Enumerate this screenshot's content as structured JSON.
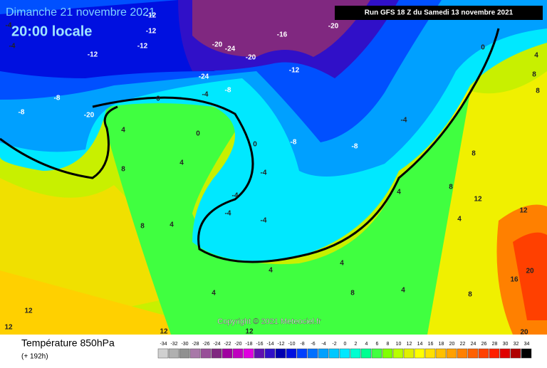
{
  "header": {
    "date": "Dimanche 21 novembre 2021",
    "time": "20:00 locale",
    "run": "Run GFS 18 Z du Samedi 13 novembre 2021"
  },
  "map": {
    "copyright": "Copyright © 2021 Meteociel.fr",
    "labels": [
      "-12",
      "-12",
      "-12",
      "-12",
      "-8",
      "-8",
      "-20",
      "-16",
      "-20",
      "-24",
      "-20",
      "-20",
      "-24",
      "-12",
      "-8",
      "-4",
      "0",
      "0",
      "4",
      "4",
      "8",
      "0",
      "-8",
      "-8",
      "-4",
      "0",
      "-4",
      "-4",
      "-4",
      "-4",
      "4",
      "8",
      "8",
      "12",
      "12",
      "4",
      "8",
      "4",
      "4",
      "4",
      "4",
      "8",
      "8",
      "12",
      "12",
      "12",
      "12",
      "16",
      "20",
      "20",
      "4",
      "8",
      "8",
      "-4",
      "-4",
      "4"
    ]
  },
  "legend": {
    "title": "Température 850hPa",
    "subtitle": "(+ 192h)",
    "values": [
      -34,
      -32,
      -30,
      -28,
      -26,
      -24,
      -22,
      -20,
      -18,
      -16,
      -14,
      -12,
      -10,
      -8,
      -6,
      -4,
      -2,
      0,
      2,
      4,
      6,
      8,
      10,
      12,
      14,
      16,
      18,
      20,
      22,
      24,
      26,
      28,
      30,
      32,
      34
    ],
    "colors": [
      "#d0d0d0",
      "#b0b0b0",
      "#909090",
      "#a878a8",
      "#985098",
      "#802880",
      "#a000a0",
      "#c000c0",
      "#e000e0",
      "#6010b0",
      "#3010c8",
      "#0000b0",
      "#0010e0",
      "#0040ff",
      "#0070ff",
      "#00a0ff",
      "#00c8ff",
      "#00e8ff",
      "#00ffd0",
      "#00ff90",
      "#40ff40",
      "#80ff00",
      "#b8ff00",
      "#e0f000",
      "#ffff00",
      "#ffe000",
      "#ffc000",
      "#ffa000",
      "#ff8000",
      "#ff6000",
      "#ff4000",
      "#ff2000",
      "#e00000",
      "#b00000",
      "#000000"
    ]
  }
}
